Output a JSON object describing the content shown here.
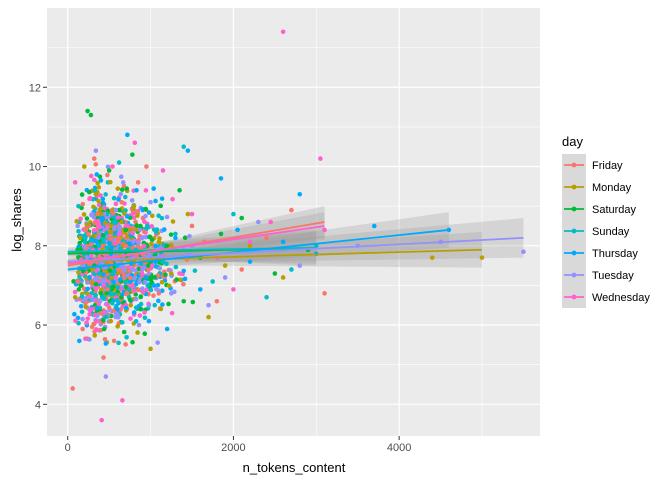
{
  "chart_data": {
    "type": "scatter",
    "xlabel": "n_tokens_content",
    "ylabel": "log_shares",
    "xlim": [
      -250,
      5700
    ],
    "ylim": [
      3.2,
      14.0
    ],
    "x_ticks": [
      0,
      2000,
      4000
    ],
    "y_ticks": [
      4,
      6,
      8,
      10,
      12
    ],
    "x_tick_labels": [
      "0",
      "2000",
      "4000"
    ],
    "y_tick_labels": [
      "4",
      "6",
      "8",
      "10",
      "12"
    ],
    "grid": true,
    "legend_title": "day",
    "legend_position": "right",
    "trend": "linear fit with confidence band per series",
    "series": [
      {
        "name": "Friday",
        "color": "#F8766D",
        "fit": {
          "x": [
            0,
            3100
          ],
          "y": [
            7.5,
            8.6
          ]
        },
        "band": {
          "x": [
            0,
            3100
          ],
          "lower": [
            7.42,
            8.2
          ],
          "upper": [
            7.58,
            9.0
          ]
        },
        "points": [
          [
            250,
            8.3
          ],
          [
            120,
            7.1
          ],
          [
            400,
            6.3
          ],
          [
            650,
            9.1
          ],
          [
            900,
            7.8
          ],
          [
            1100,
            6.8
          ],
          [
            180,
            5.9
          ],
          [
            320,
            10.2
          ],
          [
            700,
            8.0
          ],
          [
            1500,
            8.5
          ],
          [
            2100,
            7.4
          ],
          [
            2700,
            8.9
          ],
          [
            3100,
            6.8
          ],
          [
            60,
            4.4
          ],
          [
            480,
            6.9
          ],
          [
            850,
            9.6
          ],
          [
            1300,
            7.9
          ],
          [
            560,
            5.6
          ],
          [
            2400,
            8.2
          ],
          [
            1800,
            6.6
          ],
          [
            360,
            8.8
          ],
          [
            220,
            7.6
          ],
          [
            950,
            10.0
          ],
          [
            1650,
            8.1
          ]
        ]
      },
      {
        "name": "Monday",
        "color": "#B79F00",
        "fit": {
          "x": [
            0,
            5000
          ],
          "y": [
            7.6,
            7.9
          ]
        },
        "band": {
          "x": [
            0,
            5000
          ],
          "lower": [
            7.52,
            7.45
          ],
          "upper": [
            7.68,
            8.35
          ]
        },
        "points": [
          [
            300,
            7.4
          ],
          [
            150,
            8.2
          ],
          [
            520,
            6.1
          ],
          [
            800,
            9.0
          ],
          [
            1000,
            5.4
          ],
          [
            1250,
            7.3
          ],
          [
            200,
            10.0
          ],
          [
            650,
            8.6
          ],
          [
            1700,
            6.2
          ],
          [
            2200,
            8.0
          ],
          [
            4400,
            7.7
          ],
          [
            5000,
            7.7
          ],
          [
            420,
            7.9
          ],
          [
            90,
            6.7
          ],
          [
            1450,
            8.8
          ],
          [
            2600,
            7.2
          ],
          [
            760,
            6.5
          ],
          [
            340,
            9.3
          ],
          [
            1100,
            8.1
          ],
          [
            1900,
            7.5
          ]
        ]
      },
      {
        "name": "Saturday",
        "color": "#00BA38",
        "fit": {
          "x": [
            0,
            3000
          ],
          "y": [
            7.8,
            7.95
          ]
        },
        "band": {
          "x": [
            0,
            3000
          ],
          "lower": [
            7.7,
            7.55
          ],
          "upper": [
            7.9,
            8.35
          ]
        },
        "points": [
          [
            240,
            11.4
          ],
          [
            280,
            11.3
          ],
          [
            400,
            6.8
          ],
          [
            700,
            8.4
          ],
          [
            1050,
            7.2
          ],
          [
            1350,
            9.4
          ],
          [
            500,
            9.9
          ],
          [
            1600,
            7.7
          ],
          [
            2100,
            8.7
          ],
          [
            2500,
            7.3
          ],
          [
            160,
            7.0
          ],
          [
            880,
            6.4
          ],
          [
            620,
            8.9
          ],
          [
            1200,
            8.0
          ],
          [
            320,
            7.5
          ],
          [
            1850,
            8.3
          ],
          [
            2900,
            7.9
          ],
          [
            780,
            10.3
          ],
          [
            440,
            5.9
          ],
          [
            1400,
            6.6
          ]
        ]
      },
      {
        "name": "Sunday",
        "color": "#00BFC4",
        "fit": {
          "x": [
            0,
            3000
          ],
          "y": [
            7.85,
            7.95
          ]
        },
        "band": {
          "x": [
            0,
            3000
          ],
          "lower": [
            7.75,
            7.5
          ],
          "upper": [
            7.95,
            8.4
          ]
        },
        "points": [
          [
            210,
            8.1
          ],
          [
            380,
            7.3
          ],
          [
            560,
            9.2
          ],
          [
            740,
            6.9
          ],
          [
            960,
            8.5
          ],
          [
            1150,
            7.6
          ],
          [
            1400,
            10.5
          ],
          [
            1750,
            7.1
          ],
          [
            2000,
            8.8
          ],
          [
            2400,
            6.7
          ],
          [
            130,
            9.0
          ],
          [
            460,
            6.2
          ],
          [
            820,
            7.9
          ],
          [
            1300,
            8.3
          ],
          [
            2700,
            7.4
          ],
          [
            3000,
            8.0
          ],
          [
            620,
            10.1
          ],
          [
            1050,
            6.5
          ]
        ]
      },
      {
        "name": "Thursday",
        "color": "#00A9FF",
        "fit": {
          "x": [
            0,
            4600
          ],
          "y": [
            7.4,
            8.4
          ]
        },
        "band": {
          "x": [
            0,
            4600
          ],
          "lower": [
            7.33,
            7.95
          ],
          "upper": [
            7.47,
            8.85
          ]
        },
        "points": [
          [
            260,
            7.2
          ],
          [
            420,
            8.7
          ],
          [
            600,
            6.4
          ],
          [
            830,
            9.4
          ],
          [
            1040,
            7.0
          ],
          [
            1300,
            8.2
          ],
          [
            1600,
            6.9
          ],
          [
            1850,
            9.7
          ],
          [
            2200,
            7.6
          ],
          [
            2600,
            8.1
          ],
          [
            3000,
            7.8
          ],
          [
            3700,
            8.5
          ],
          [
            4600,
            8.4
          ],
          [
            140,
            5.6
          ],
          [
            720,
            10.8
          ],
          [
            980,
            6.1
          ],
          [
            1450,
            10.4
          ],
          [
            2800,
            9.3
          ],
          [
            520,
            7.8
          ],
          [
            350,
            9.8
          ],
          [
            1200,
            5.9
          ],
          [
            2050,
            8.4
          ]
        ]
      },
      {
        "name": "Tuesday",
        "color": "#9590FF",
        "fit": {
          "x": [
            0,
            5500
          ],
          "y": [
            7.6,
            8.2
          ]
        },
        "band": {
          "x": [
            0,
            5500
          ],
          "lower": [
            7.53,
            7.7
          ],
          "upper": [
            7.67,
            8.7
          ]
        },
        "points": [
          [
            230,
            7.7
          ],
          [
            390,
            6.6
          ],
          [
            580,
            8.9
          ],
          [
            780,
            7.4
          ],
          [
            1000,
            9.1
          ],
          [
            1250,
            6.8
          ],
          [
            1500,
            8.0
          ],
          [
            1900,
            7.2
          ],
          [
            2300,
            8.6
          ],
          [
            2800,
            7.5
          ],
          [
            3500,
            8.0
          ],
          [
            4500,
            8.1
          ],
          [
            5500,
            7.85
          ],
          [
            120,
            8.5
          ],
          [
            460,
            4.7
          ],
          [
            670,
            9.6
          ],
          [
            1100,
            7.9
          ],
          [
            1700,
            6.5
          ],
          [
            340,
            10.4
          ],
          [
            860,
            6.0
          ]
        ]
      },
      {
        "name": "Wednesday",
        "color": "#FF61CC",
        "fit": {
          "x": [
            0,
            3100
          ],
          "y": [
            7.55,
            8.5
          ]
        },
        "band": {
          "x": [
            0,
            3100
          ],
          "lower": [
            7.48,
            8.15
          ],
          "upper": [
            7.62,
            8.85
          ]
        },
        "points": [
          [
            270,
            9.2
          ],
          [
            440,
            7.0
          ],
          [
            620,
            8.3
          ],
          [
            810,
            10.6
          ],
          [
            1020,
            7.5
          ],
          [
            1260,
            6.3
          ],
          [
            1500,
            8.8
          ],
          [
            1800,
            7.7
          ],
          [
            2200,
            8.1
          ],
          [
            2600,
            13.4
          ],
          [
            3050,
            10.2
          ],
          [
            3100,
            8.4
          ],
          [
            90,
            9.6
          ],
          [
            410,
            3.6
          ],
          [
            660,
            4.1
          ],
          [
            920,
            8.0
          ],
          [
            1150,
            9.9
          ],
          [
            2000,
            6.9
          ],
          [
            350,
            6.1
          ],
          [
            540,
            10.0
          ],
          [
            1350,
            7.3
          ],
          [
            2450,
            8.6
          ]
        ]
      }
    ]
  }
}
